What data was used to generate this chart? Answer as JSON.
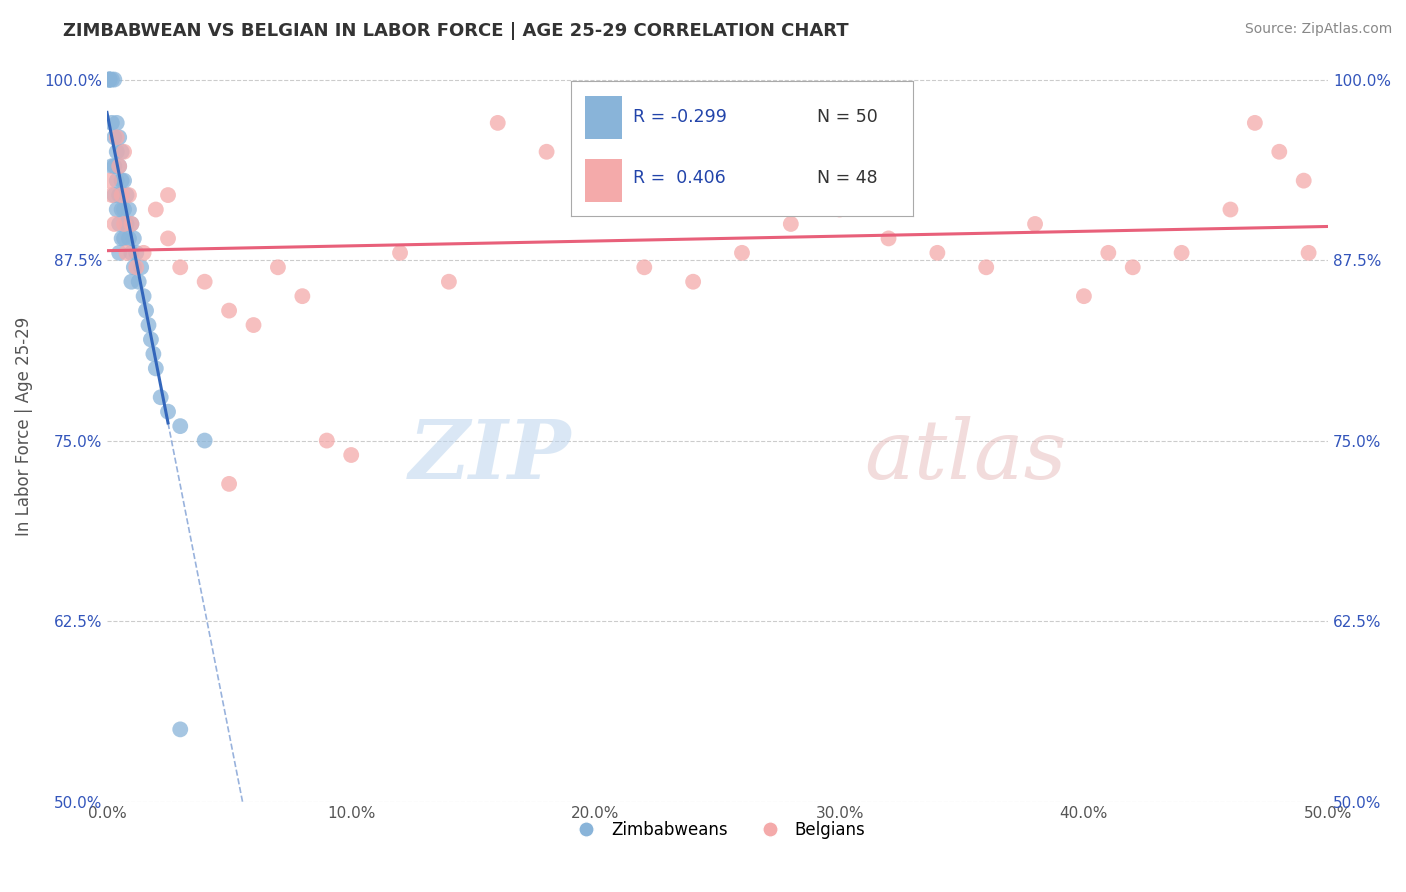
{
  "title": "ZIMBABWEAN VS BELGIAN IN LABOR FORCE | AGE 25-29 CORRELATION CHART",
  "source": "Source: ZipAtlas.com",
  "ylabel": "In Labor Force | Age 25-29",
  "xmin": 0.0,
  "xmax": 0.5,
  "ymin": 0.5,
  "ymax": 1.02,
  "yticks": [
    0.5,
    0.625,
    0.75,
    0.875,
    1.0
  ],
  "ytick_labels": [
    "50.0%",
    "62.5%",
    "75.0%",
    "87.5%",
    "100.0%"
  ],
  "xticks": [
    0.0,
    0.1,
    0.2,
    0.3,
    0.4,
    0.5
  ],
  "xtick_labels": [
    "0.0%",
    "10.0%",
    "20.0%",
    "30.0%",
    "40.0%",
    "50.0%"
  ],
  "blue_color": "#89B4D9",
  "pink_color": "#F4AAAA",
  "blue_line_color": "#3366BB",
  "pink_line_color": "#E8607A",
  "grid_color": "#CCCCCC",
  "R_blue": -0.299,
  "N_blue": 50,
  "R_pink": 0.406,
  "N_pink": 48,
  "legend_labels": [
    "Zimbabweans",
    "Belgians"
  ],
  "blue_x": [
    0.001,
    0.001,
    0.001,
    0.001,
    0.002,
    0.002,
    0.002,
    0.003,
    0.003,
    0.003,
    0.003,
    0.004,
    0.004,
    0.004,
    0.004,
    0.005,
    0.005,
    0.005,
    0.005,
    0.005,
    0.006,
    0.006,
    0.006,
    0.006,
    0.007,
    0.007,
    0.007,
    0.008,
    0.008,
    0.009,
    0.009,
    0.01,
    0.01,
    0.01,
    0.011,
    0.011,
    0.012,
    0.013,
    0.014,
    0.015,
    0.016,
    0.017,
    0.018,
    0.019,
    0.02,
    0.022,
    0.025,
    0.03,
    0.04,
    0.03
  ],
  "blue_y": [
    1.0,
    1.0,
    1.0,
    1.0,
    1.0,
    0.97,
    0.94,
    1.0,
    0.96,
    0.94,
    0.92,
    0.97,
    0.95,
    0.93,
    0.91,
    0.96,
    0.94,
    0.92,
    0.9,
    0.88,
    0.95,
    0.93,
    0.91,
    0.89,
    0.93,
    0.91,
    0.89,
    0.92,
    0.9,
    0.91,
    0.89,
    0.9,
    0.88,
    0.86,
    0.89,
    0.87,
    0.88,
    0.86,
    0.87,
    0.85,
    0.84,
    0.83,
    0.82,
    0.81,
    0.8,
    0.78,
    0.77,
    0.76,
    0.75,
    0.55
  ],
  "pink_x": [
    0.001,
    0.002,
    0.003,
    0.004,
    0.005,
    0.006,
    0.007,
    0.008,
    0.009,
    0.01,
    0.015,
    0.02,
    0.025,
    0.03,
    0.04,
    0.05,
    0.06,
    0.07,
    0.08,
    0.09,
    0.1,
    0.12,
    0.14,
    0.16,
    0.18,
    0.2,
    0.22,
    0.24,
    0.26,
    0.28,
    0.3,
    0.32,
    0.34,
    0.36,
    0.38,
    0.4,
    0.41,
    0.42,
    0.44,
    0.46,
    0.47,
    0.48,
    0.49,
    0.492,
    0.007,
    0.012,
    0.025,
    0.05
  ],
  "pink_y": [
    0.93,
    0.92,
    0.9,
    0.96,
    0.94,
    0.92,
    0.9,
    0.88,
    0.92,
    0.9,
    0.88,
    0.91,
    0.89,
    0.87,
    0.86,
    0.84,
    0.83,
    0.87,
    0.85,
    0.75,
    0.74,
    0.88,
    0.86,
    0.97,
    0.95,
    0.93,
    0.87,
    0.86,
    0.88,
    0.9,
    0.91,
    0.89,
    0.88,
    0.87,
    0.9,
    0.85,
    0.88,
    0.87,
    0.88,
    0.91,
    0.97,
    0.95,
    0.93,
    0.88,
    0.95,
    0.87,
    0.92,
    0.72
  ]
}
